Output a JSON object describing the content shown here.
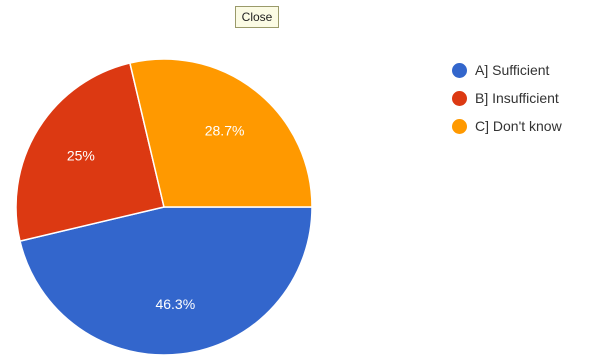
{
  "close_label": "Close",
  "chart_data": {
    "type": "pie",
    "categories": [
      "A] Sufficient",
      "B] Insufficient",
      "C] Don't know"
    ],
    "values": [
      46.3,
      25,
      28.7
    ],
    "labels": [
      "46.3%",
      "25%",
      "28.7%"
    ],
    "colors": [
      "#3366cc",
      "#dc3912",
      "#ff9900"
    ],
    "legend": "right"
  }
}
